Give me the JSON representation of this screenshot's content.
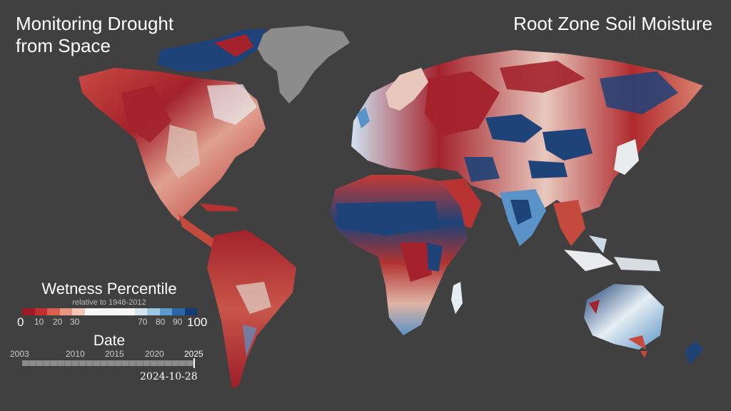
{
  "title_left": {
    "line1": "Monitoring Drought",
    "line2": "from Space"
  },
  "title_right": "Root Zone Soil Moisture",
  "legend": {
    "title": "Wetness Percentile",
    "subtitle": "relative to 1948-2012",
    "min_label": "0",
    "max_label": "100",
    "ticks": [
      "10",
      "20",
      "30",
      "70",
      "80",
      "90"
    ],
    "colors": [
      "#9d1b25",
      "#c22f32",
      "#d85f4f",
      "#e9947e",
      "#f4c8b8",
      "#f7f7f7",
      "#f7f7f7",
      "#f7f7f7",
      "#f7f7f7",
      "#d2e5f1",
      "#9cc7e2",
      "#5a9ccd",
      "#2a66a8",
      "#143b72"
    ]
  },
  "date": {
    "title": "Date",
    "years": [
      "2003",
      "2010",
      "2015",
      "2020",
      "2025"
    ],
    "current": "2024-10-28",
    "progress": 0.99
  },
  "map_colors": {
    "ocean": "#404040",
    "greenland": "#8c8c8c",
    "dry": "#a0202a",
    "dry2": "#cc4a40",
    "mid": "#e8d6d0",
    "wet": "#5a93c8",
    "wet2": "#1b3f70"
  }
}
